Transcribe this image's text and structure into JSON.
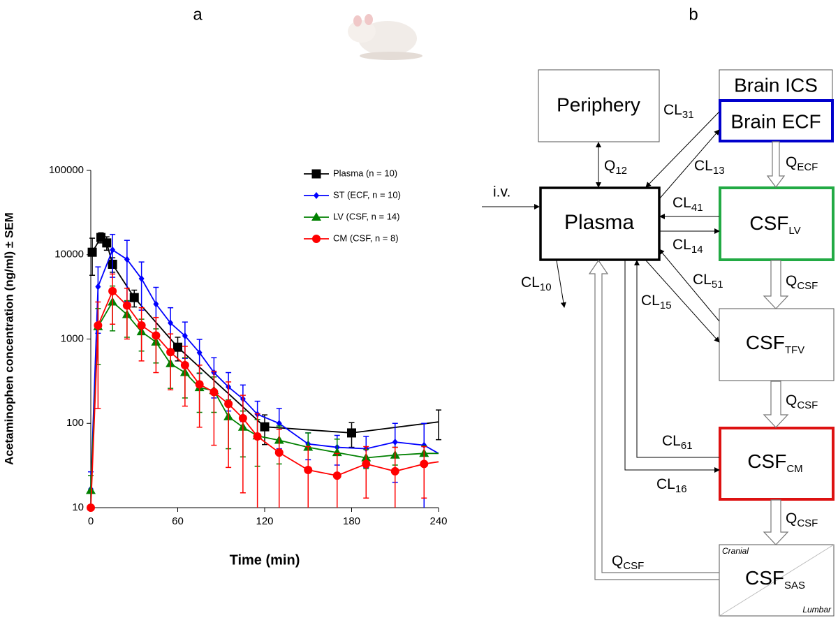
{
  "panel_labels": [
    "a",
    "b"
  ],
  "chart_data": {
    "type": "line",
    "y_label": "Acetaminophen concentration (ng/ml) ± SEM",
    "x_label": "Time (min)",
    "xlim": [
      0,
      240
    ],
    "xticks": [
      0,
      60,
      120,
      180,
      240
    ],
    "ylim": [
      10,
      100000
    ],
    "yticks": [
      10,
      100,
      1000,
      10000,
      100000
    ],
    "yscale": "log",
    "grid": false,
    "legend": "upper right",
    "series": [
      {
        "name": "Plasma (n = 10)",
        "color": "#000000",
        "marker": "square",
        "x": [
          1,
          7,
          11,
          15,
          30,
          60,
          120,
          180,
          240
        ],
        "values": [
          10700,
          16000,
          13800,
          7700,
          3100,
          800,
          91,
          77,
          104
        ],
        "errors": [
          5000,
          2200,
          2500,
          1500,
          700,
          250,
          35,
          25,
          40
        ]
      },
      {
        "name": "ST (ECF, n = 10)",
        "color": "#0000ff",
        "marker": "diamond",
        "x": [
          0,
          5,
          15,
          25,
          35,
          45,
          55,
          65,
          75,
          85,
          95,
          105,
          115,
          130,
          150,
          170,
          190,
          210,
          230,
          240
        ],
        "values": [
          16.6,
          4170,
          11400,
          8800,
          5200,
          2600,
          1550,
          1090,
          690,
          400,
          270,
          195,
          128,
          100,
          57,
          52,
          50,
          60,
          55,
          44
        ],
        "errors": [
          10,
          3000,
          6000,
          6000,
          3000,
          1500,
          800,
          500,
          300,
          200,
          130,
          90,
          55,
          50,
          20,
          20,
          20,
          40,
          45,
          null
        ]
      },
      {
        "name": "LV (CSF, n = 14)",
        "color": "#008000",
        "marker": "triangle",
        "x": [
          0,
          5,
          15,
          25,
          35,
          45,
          55,
          65,
          75,
          85,
          95,
          105,
          115,
          130,
          150,
          170,
          190,
          210,
          230,
          240
        ],
        "values": [
          16,
          1400,
          2750,
          1950,
          1220,
          920,
          510,
          400,
          265,
          245,
          120,
          90,
          71,
          63,
          52,
          45,
          39,
          42,
          44,
          44
        ],
        "errors": [
          8,
          900,
          1500,
          900,
          500,
          400,
          250,
          200,
          130,
          110,
          70,
          50,
          40,
          30,
          25,
          20,
          10,
          10,
          10,
          null
        ]
      },
      {
        "name": "CM (CSF, n = 8)",
        "color": "#ff0000",
        "marker": "circle",
        "x": [
          0,
          5,
          15,
          25,
          35,
          45,
          55,
          65,
          75,
          85,
          95,
          105,
          115,
          130,
          150,
          170,
          190,
          210,
          230,
          240
        ],
        "values": [
          10,
          1450,
          3700,
          2500,
          1450,
          1100,
          700,
          490,
          290,
          235,
          170,
          115,
          70,
          45,
          28,
          24,
          33,
          27,
          33,
          35
        ],
        "errors": [
          null,
          1300,
          2200,
          1500,
          900,
          700,
          450,
          330,
          200,
          180,
          140,
          100,
          60,
          40,
          25,
          20,
          20,
          25,
          20,
          null
        ]
      }
    ]
  },
  "diagram": {
    "nodes": [
      {
        "label": "Periphery"
      },
      {
        "label": "Brain ICS"
      },
      {
        "label": "Brain ECF"
      },
      {
        "label": "Plasma"
      },
      {
        "base": "CSF",
        "sub": "LV"
      },
      {
        "base": "CSF",
        "sub": "TFV"
      },
      {
        "base": "CSF",
        "sub": "CM"
      },
      {
        "base": "CSF",
        "sub": "SAS",
        "corner_labels": [
          "Cranial",
          "Lumbar"
        ]
      }
    ],
    "edges": [
      {
        "label": "i.v."
      },
      {
        "base": "Q",
        "sub": "12"
      },
      {
        "base": "CL",
        "sub": "10"
      },
      {
        "base": "CL",
        "sub": "31"
      },
      {
        "base": "CL",
        "sub": "13"
      },
      {
        "base": "CL",
        "sub": "41"
      },
      {
        "base": "CL",
        "sub": "14"
      },
      {
        "base": "Q",
        "sub": "ECF"
      },
      {
        "base": "CL",
        "sub": "51"
      },
      {
        "base": "CL",
        "sub": "15"
      },
      {
        "base": "Q",
        "sub": "CSF"
      },
      {
        "base": "Q",
        "sub": "CSF"
      },
      {
        "base": "Q",
        "sub": "CSF"
      },
      {
        "base": "CL",
        "sub": "61"
      },
      {
        "base": "CL",
        "sub": "16"
      },
      {
        "base": "Q",
        "sub": "CSF"
      }
    ]
  }
}
